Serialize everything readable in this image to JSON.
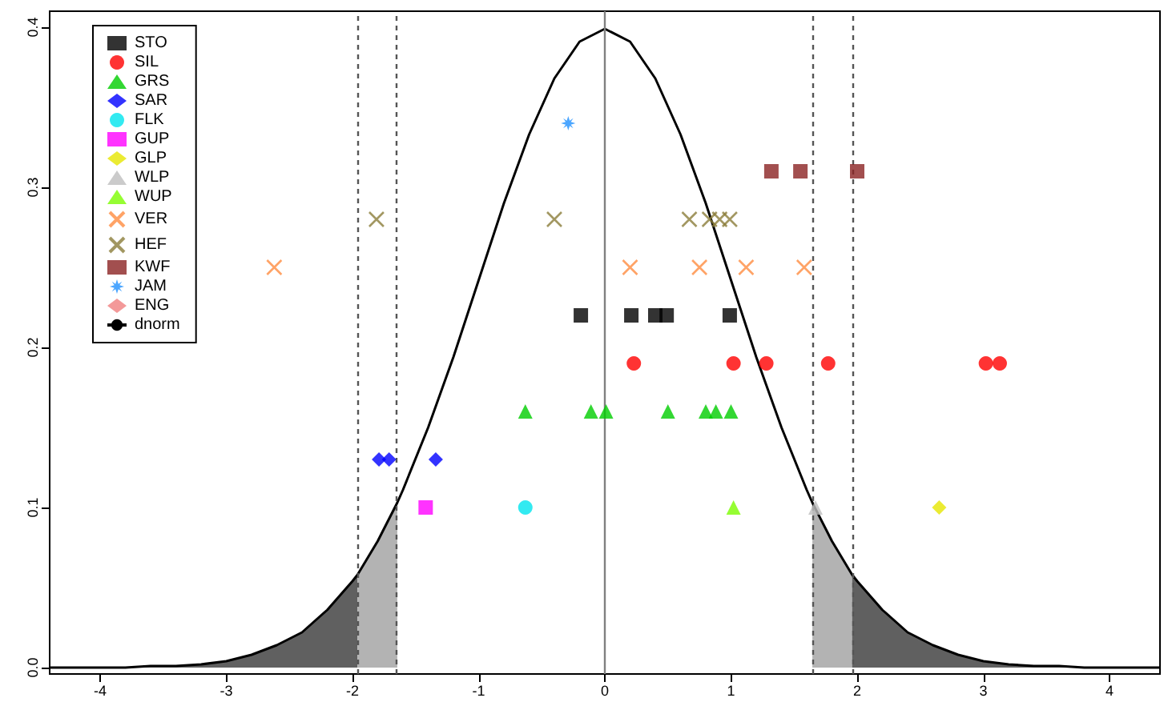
{
  "chart_data": {
    "type": "scatter",
    "xlim": [
      -4.4,
      4.4
    ],
    "ylim": [
      -0.004,
      0.41
    ],
    "xticks": [
      -4,
      -3,
      -2,
      -1,
      0,
      1,
      2,
      3,
      4
    ],
    "yticks": [
      {
        "value": 0,
        "label": "0.0"
      },
      {
        "value": 0.1,
        "label": "0.1"
      },
      {
        "value": 0.2,
        "label": "0.2"
      },
      {
        "value": 0.3,
        "label": "0.3"
      },
      {
        "value": 0.4,
        "label": "0.4"
      }
    ],
    "grid": false,
    "legend": "top left",
    "series": [
      {
        "name": "STO",
        "color": "#000000",
        "marker": "square",
        "x": [
          -0.19,
          0.21,
          0.4,
          0.49,
          0.99
        ],
        "values": [
          0.22,
          0.22,
          0.22,
          0.22,
          0.22
        ]
      },
      {
        "name": "SIL",
        "color": "#ff0000",
        "marker": "circle",
        "x": [
          0.23,
          1.02,
          1.28,
          1.77,
          3.02,
          3.13
        ],
        "values": [
          0.19,
          0.19,
          0.19,
          0.19,
          0.19,
          0.19
        ]
      },
      {
        "name": "GRS",
        "color": "#00cd00",
        "marker": "triangle",
        "x": [
          -0.63,
          -0.11,
          0.01,
          0.5,
          0.8,
          0.88,
          1.0
        ],
        "values": [
          0.16,
          0.16,
          0.16,
          0.16,
          0.16,
          0.16,
          0.16
        ]
      },
      {
        "name": "SAR",
        "color": "#0000ff",
        "marker": "diamond",
        "x": [
          -1.79,
          -1.71,
          -1.34
        ],
        "values": [
          0.13,
          0.13,
          0.13
        ]
      },
      {
        "name": "FLK",
        "color": "#00e5ee",
        "marker": "circle",
        "x": [
          -0.63
        ],
        "values": [
          0.1
        ]
      },
      {
        "name": "GUP",
        "color": "#ff00ff",
        "marker": "square",
        "x": [
          -1.42
        ],
        "values": [
          0.1
        ]
      },
      {
        "name": "GLP",
        "color": "#e6e600",
        "marker": "diamond",
        "x": [
          2.65
        ],
        "values": [
          0.1
        ]
      },
      {
        "name": "WLP",
        "color": "#bebebe",
        "marker": "triangle",
        "x": [
          1.67
        ],
        "values": [
          0.1
        ]
      },
      {
        "name": "WUP",
        "color": "#7cfc00",
        "marker": "triangle",
        "x": [
          1.02
        ],
        "values": [
          0.1
        ]
      },
      {
        "name": "VER",
        "color": "#ff8c40",
        "marker": "cross",
        "x": [
          -2.62,
          0.2,
          0.75,
          1.12,
          1.58
        ],
        "values": [
          0.25,
          0.25,
          0.25,
          0.25,
          0.25
        ]
      },
      {
        "name": "HEF",
        "color": "#8b7d3a",
        "marker": "cross",
        "x": [
          -1.81,
          -0.4,
          0.67,
          0.83,
          0.91,
          0.99
        ],
        "values": [
          0.28,
          0.28,
          0.28,
          0.28,
          0.28,
          0.28
        ]
      },
      {
        "name": "KWF",
        "color": "#8b2323",
        "marker": "square",
        "x": [
          1.32,
          1.55,
          2.0
        ],
        "values": [
          0.31,
          0.31,
          0.31
        ]
      },
      {
        "name": "JAM",
        "color": "#1e90ff",
        "marker": "star",
        "x": [
          -0.29
        ],
        "values": [
          0.34
        ]
      },
      {
        "name": "ENG",
        "color": "#f08080",
        "marker": "diamond"
      },
      {
        "type": "area",
        "color": "#606060",
        "x": [
          -4.4,
          -4.2,
          -4.0,
          -3.8,
          -3.6,
          -3.4,
          -3.2,
          -3.0,
          -2.8,
          -2.6,
          -2.4,
          -2.2,
          -2.0,
          -1.96
        ],
        "values": [
          0.0,
          0.0,
          0.0,
          0.0,
          0.001,
          0.001,
          0.002,
          0.004,
          0.008,
          0.014,
          0.022,
          0.036,
          0.054,
          0.058
        ]
      },
      {
        "type": "area",
        "color": "#b3b3b3",
        "x": [
          -1.96,
          -1.8,
          -1.645
        ],
        "values": [
          0.058,
          0.079,
          0.103
        ]
      },
      {
        "type": "area",
        "color": "#b3b3b3",
        "x": [
          1.645,
          1.8,
          1.96
        ],
        "values": [
          0.103,
          0.079,
          0.058
        ]
      },
      {
        "type": "area",
        "color": "#606060",
        "x": [
          1.96,
          2.0,
          2.2,
          2.4,
          2.6,
          2.8,
          3.0,
          3.2,
          3.4,
          3.6,
          3.8,
          4.0,
          4.2,
          4.4
        ],
        "values": [
          0.058,
          0.054,
          0.036,
          0.022,
          0.014,
          0.008,
          0.004,
          0.002,
          0.001,
          0.001,
          0.0,
          0.0,
          0.0,
          0.0
        ]
      },
      {
        "name": "dnorm",
        "type": "line",
        "color": "#000000",
        "marker": "none",
        "line_style": "solid",
        "x": [
          -4.4,
          -4.2,
          -4.0,
          -3.8,
          -3.6,
          -3.4,
          -3.2,
          -3.0,
          -2.8,
          -2.6,
          -2.4,
          -2.2,
          -2.0,
          -1.96,
          -1.8,
          -1.645,
          -1.6,
          -1.4,
          -1.2,
          -1.0,
          -0.8,
          -0.6,
          -0.4,
          -0.2,
          0,
          0.2,
          0.4,
          0.6,
          0.8,
          1.0,
          1.2,
          1.4,
          1.6,
          1.645,
          1.8,
          1.96,
          2.0,
          2.2,
          2.4,
          2.6,
          2.8,
          3.0,
          3.2,
          3.4,
          3.6,
          3.8,
          4.0,
          4.2,
          4.4
        ],
        "values": [
          0.0,
          0.0,
          0.0,
          0.0,
          0.001,
          0.001,
          0.002,
          0.004,
          0.008,
          0.014,
          0.022,
          0.036,
          0.054,
          0.058,
          0.079,
          0.103,
          0.111,
          0.15,
          0.194,
          0.242,
          0.29,
          0.333,
          0.368,
          0.391,
          0.399,
          0.391,
          0.368,
          0.333,
          0.29,
          0.242,
          0.194,
          0.15,
          0.111,
          0.103,
          0.079,
          0.058,
          0.054,
          0.036,
          0.022,
          0.014,
          0.008,
          0.004,
          0.002,
          0.001,
          0.001,
          0.0,
          0.0,
          0.0,
          0.0
        ]
      }
    ],
    "ref_lines": [
      {
        "axis": "x",
        "value": -1.96,
        "color": "#555555",
        "line_style": "dashed"
      },
      {
        "axis": "x",
        "value": -1.645,
        "color": "#555555",
        "line_style": "dashed"
      },
      {
        "axis": "x",
        "value": 0,
        "color": "#808080",
        "line_style": "solid"
      },
      {
        "axis": "x",
        "value": 1.645,
        "color": "#555555",
        "line_style": "dashed"
      },
      {
        "axis": "x",
        "value": 1.96,
        "color": "#555555",
        "line_style": "dashed"
      }
    ]
  }
}
